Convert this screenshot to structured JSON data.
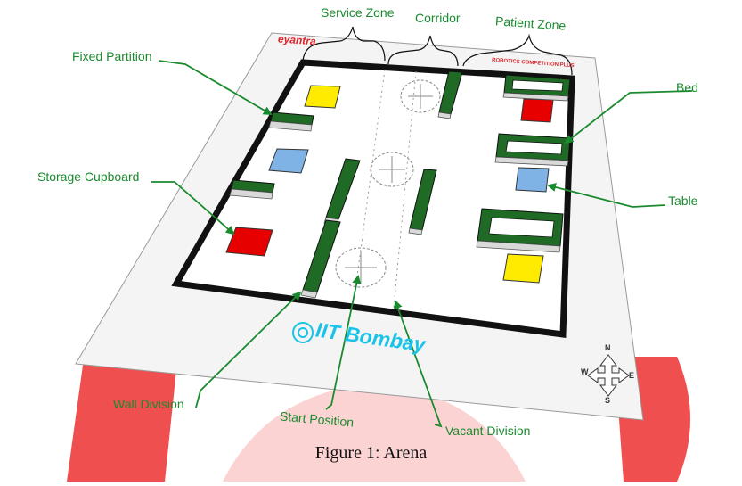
{
  "labels": {
    "service_zone": "Service Zone",
    "corridor": "Corridor",
    "patient_zone": "Patient Zone",
    "fixed_partition": "Fixed Partition",
    "bed": "Bed",
    "storage_cupboard": "Storage Cupboard",
    "table": "Table",
    "wall_division": "Wall Division",
    "start_position": "Start Position",
    "vacant_division": "Vacant Division"
  },
  "arena": {
    "brand": "eyantra",
    "competition": "ROBOTICS COMPETITION PLUS",
    "institute": "IIT Bombay"
  },
  "compass": {
    "north": "N",
    "south": "S",
    "east": "E",
    "west": "W"
  },
  "caption": "Figure 1: Arena",
  "colors": {
    "label_green": "#1a8a2e",
    "wall_green": "#1f6b25",
    "yellow": "#ffeb00",
    "red": "#e60000",
    "blue": "#7fb3e6",
    "brand_red": "#d9262b",
    "institute_cyan": "#19c3e8",
    "watermark": "#ee3c3c"
  }
}
